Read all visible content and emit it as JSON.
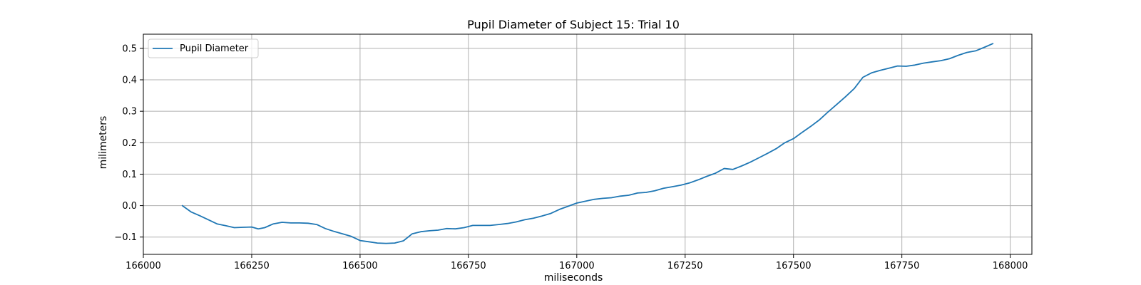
{
  "chart_data": {
    "type": "line",
    "title": "Pupil Diameter of Subject 15: Trial 10",
    "xlabel": "miliseconds",
    "ylabel": "milimeters",
    "xlim": [
      166000,
      168050
    ],
    "ylim": [
      -0.155,
      0.545
    ],
    "x_ticks": [
      166000,
      166250,
      166500,
      166750,
      167000,
      167250,
      167500,
      167750,
      168000
    ],
    "y_ticks": [
      -0.1,
      0.0,
      0.1,
      0.2,
      0.3,
      0.4,
      0.5
    ],
    "y_tick_labels": [
      "−0.1",
      "0.0",
      "0.1",
      "0.2",
      "0.3",
      "0.4",
      "0.5"
    ],
    "grid": true,
    "legend": {
      "position": "upper-left",
      "entries": [
        "Pupil Diameter"
      ]
    },
    "colors": {
      "series": "#1f77b4",
      "grid": "#b0b0b0",
      "axes": "#000000"
    },
    "series": [
      {
        "name": "Pupil Diameter",
        "x": [
          166090,
          166110,
          166130,
          166150,
          166170,
          166190,
          166210,
          166230,
          166250,
          166265,
          166280,
          166300,
          166320,
          166340,
          166360,
          166380,
          166400,
          166420,
          166440,
          166460,
          166480,
          166500,
          166520,
          166540,
          166560,
          166580,
          166600,
          166620,
          166640,
          166660,
          166680,
          166700,
          166720,
          166740,
          166760,
          166780,
          166800,
          166820,
          166840,
          166860,
          166880,
          166900,
          166920,
          166940,
          166960,
          166980,
          167000,
          167020,
          167040,
          167060,
          167080,
          167100,
          167120,
          167140,
          167160,
          167180,
          167200,
          167220,
          167240,
          167260,
          167280,
          167300,
          167320,
          167340,
          167360,
          167380,
          167400,
          167420,
          167440,
          167460,
          167480,
          167500,
          167520,
          167540,
          167560,
          167580,
          167600,
          167620,
          167640,
          167660,
          167680,
          167700,
          167720,
          167740,
          167760,
          167780,
          167800,
          167820,
          167840,
          167860,
          167880,
          167900,
          167920,
          167940,
          167960
        ],
        "y": [
          0.0,
          -0.02,
          -0.032,
          -0.045,
          -0.058,
          -0.064,
          -0.07,
          -0.069,
          -0.068,
          -0.074,
          -0.07,
          -0.058,
          -0.053,
          -0.055,
          -0.055,
          -0.056,
          -0.06,
          -0.073,
          -0.082,
          -0.09,
          -0.098,
          -0.111,
          -0.115,
          -0.119,
          -0.12,
          -0.119,
          -0.112,
          -0.09,
          -0.083,
          -0.08,
          -0.078,
          -0.073,
          -0.074,
          -0.07,
          -0.063,
          -0.063,
          -0.063,
          -0.06,
          -0.057,
          -0.052,
          -0.045,
          -0.04,
          -0.033,
          -0.025,
          -0.012,
          -0.002,
          0.008,
          0.014,
          0.02,
          0.023,
          0.025,
          0.03,
          0.033,
          0.04,
          0.042,
          0.047,
          0.055,
          0.06,
          0.065,
          0.072,
          0.082,
          0.093,
          0.103,
          0.118,
          0.115,
          0.126,
          0.138,
          0.152,
          0.166,
          0.181,
          0.2,
          0.213,
          0.233,
          0.252,
          0.273,
          0.298,
          0.322,
          0.346,
          0.372,
          0.408,
          0.422,
          0.43,
          0.437,
          0.444,
          0.443,
          0.447,
          0.453,
          0.457,
          0.461,
          0.467,
          0.478,
          0.487,
          0.492,
          0.503,
          0.515
        ]
      }
    ]
  }
}
